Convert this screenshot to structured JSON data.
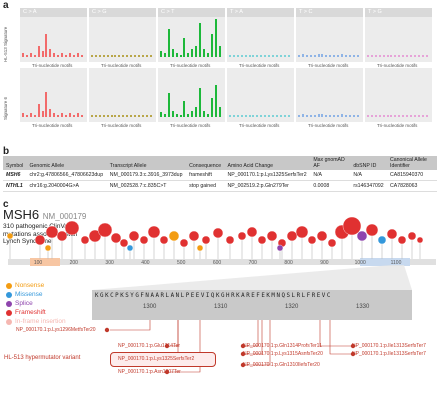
{
  "panel_labels": {
    "a": "a",
    "b": "b",
    "c": "c"
  },
  "signatures": {
    "mutation_types": [
      "C > A",
      "C > G",
      "C > T",
      "T > A",
      "T > C",
      "T > G"
    ],
    "colors": [
      "#f26b6b",
      "#b8a64a",
      "#1db83a",
      "#7fd3d8",
      "#8fb4e6",
      "#e6a3d8"
    ],
    "row_labels": [
      "HL-513 Signature",
      "Signature 6"
    ],
    "xaxis_label": "Tri-nucleotide motifs"
  },
  "table": {
    "headers": [
      "Symbol",
      "Genomic Allele",
      "Transcript Allele",
      "Consequence",
      "Amino Acid Change",
      "Max gnomAD AF",
      "dbSNP ID",
      "Canonical Allele Identifier"
    ],
    "rows": [
      [
        "MSH6",
        "chr2:g.47806566_47806623dup",
        "NM_000179.3:c.3916_3973dup",
        "frameshift",
        "NP_000170.1:p.Lys1325SerfsTer2",
        "N/A",
        "N/A",
        "CA815940370"
      ],
      [
        "NTHL1",
        "chr16:g.2040004G>A",
        "NM_002528.7:c.835C>T",
        "stop gained",
        "NP_002519.2:p.Gln279Ter",
        "0.0008",
        "rs146347092",
        "CA7828063"
      ]
    ]
  },
  "gene": {
    "name": "MSH6",
    "accession": "NM_000179",
    "description": [
      "310 pathogenic ClinVar",
      "mutations associated with",
      "Lynch Syndrome"
    ],
    "axis_ticks": [
      "100",
      "200",
      "300",
      "400",
      "500",
      "600",
      "700",
      "800",
      "900",
      "1000",
      "1100"
    ],
    "legend": [
      {
        "label": "Nonsense",
        "color": "#f39c12"
      },
      {
        "label": "Missense",
        "color": "#3498db"
      },
      {
        "label": "Splice",
        "color": "#8e44ad"
      },
      {
        "label": "Frameshift",
        "color": "#e03131"
      },
      {
        "label": "In-frame insertion",
        "color": "#f5b7b1"
      }
    ],
    "sequence": "KGKCPKSYGFNAARLANLPEEVIQKGHRKAREFEKMNQSLRLFREVC",
    "zoom_ticks": [
      "1300",
      "1310",
      "1320",
      "1330"
    ],
    "mutation_labels": [
      "NP_000170.1:p.Lys1296MetfsTer20",
      "NP_000170.1:p.Glu1314Ter",
      "NP_000170.1:p.Lys1325SerfsTer2",
      "NP_000170.1:p.Asn1307Ter",
      "NP_000170.1:p.Gln1314ProfsTer11",
      "NP_000170.1:p.Lys1315AsnfsTer20",
      "NP_000170.1:p.Gln1310IlefsTer20",
      "NP_000170.1:p.Ile1313SerfsTer7",
      "NP_000170.1:p.Ile1313SerfsTer7"
    ],
    "highlight_label": "HL-513 hypermutator variant"
  }
}
